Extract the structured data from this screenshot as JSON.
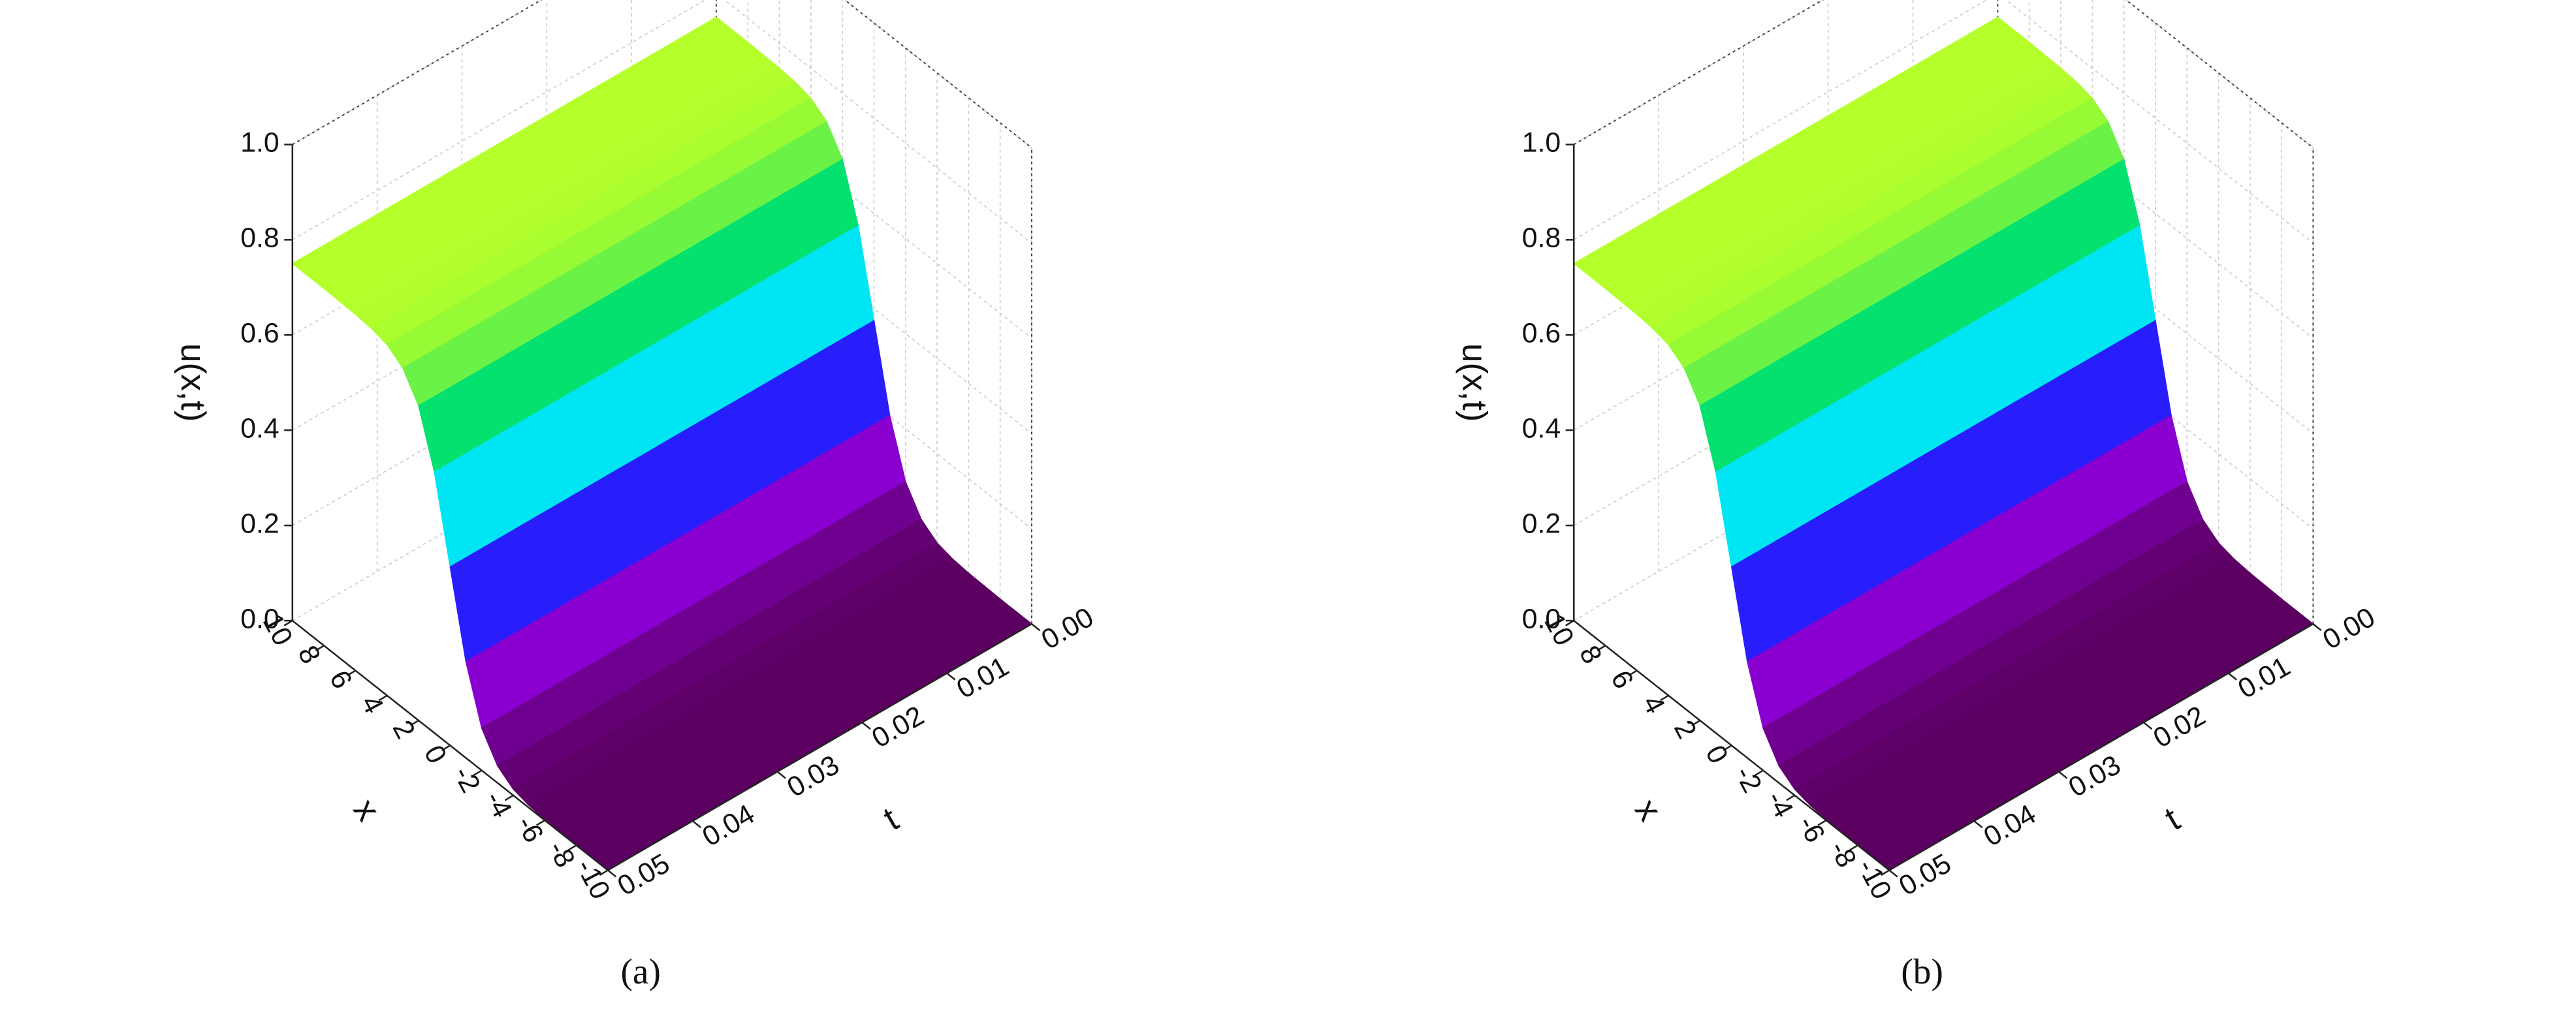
{
  "chart_data": [
    {
      "type": "surface",
      "caption": "(a)",
      "xlabel": "x",
      "ylabel": "t",
      "zlabel": "u(x,t)",
      "x": [
        -10,
        -9,
        -8,
        -7,
        -6,
        -5,
        -4,
        -3,
        -2,
        -1,
        0,
        1,
        2,
        3,
        4,
        5,
        6,
        7,
        8,
        9,
        10
      ],
      "y": [
        0,
        0.01,
        0.02,
        0.03,
        0.04,
        0.05
      ],
      "values": [
        [
          0,
          0,
          0,
          0.001,
          0.002,
          0.005,
          0.013,
          0.036,
          0.089,
          0.202,
          0.375,
          0.548,
          0.661,
          0.714,
          0.737,
          0.745,
          0.748,
          0.749,
          0.75,
          0.75,
          0.75
        ],
        [
          0,
          0,
          0,
          0.001,
          0.002,
          0.005,
          0.013,
          0.036,
          0.089,
          0.202,
          0.375,
          0.548,
          0.661,
          0.714,
          0.737,
          0.745,
          0.748,
          0.749,
          0.75,
          0.75,
          0.75
        ],
        [
          0,
          0,
          0,
          0.001,
          0.002,
          0.005,
          0.013,
          0.036,
          0.089,
          0.202,
          0.375,
          0.548,
          0.661,
          0.714,
          0.737,
          0.745,
          0.748,
          0.749,
          0.75,
          0.75,
          0.75
        ],
        [
          0,
          0,
          0,
          0.001,
          0.002,
          0.005,
          0.013,
          0.036,
          0.089,
          0.202,
          0.375,
          0.548,
          0.661,
          0.714,
          0.737,
          0.745,
          0.748,
          0.749,
          0.75,
          0.75,
          0.75
        ],
        [
          0,
          0,
          0,
          0.001,
          0.002,
          0.005,
          0.013,
          0.036,
          0.089,
          0.202,
          0.375,
          0.548,
          0.661,
          0.714,
          0.737,
          0.745,
          0.748,
          0.749,
          0.75,
          0.75,
          0.75
        ],
        [
          0,
          0,
          0,
          0.001,
          0.002,
          0.005,
          0.013,
          0.036,
          0.089,
          0.202,
          0.375,
          0.548,
          0.661,
          0.714,
          0.737,
          0.745,
          0.748,
          0.749,
          0.75,
          0.75,
          0.75
        ]
      ],
      "xlim": [
        -10,
        10
      ],
      "xticks": [
        10,
        8,
        6,
        4,
        2,
        0,
        -2,
        -4,
        -6,
        -8,
        -10
      ],
      "ylim": [
        0,
        0.05
      ],
      "yticks": [
        {
          "value": 0,
          "label": "0.00"
        },
        0.01,
        0.02,
        0.03,
        0.04,
        0.05
      ],
      "zlim": [
        0,
        1
      ],
      "zticks": [
        {
          "value": 0,
          "label": "0.0"
        },
        0.2,
        0.4,
        0.6,
        0.8,
        {
          "value": 1,
          "label": "1.0"
        }
      ],
      "colormap": [
        "#5b0060",
        "#8a00d4",
        "#2020ff",
        "#00e5ff",
        "#00e070",
        "#b5ff2a"
      ],
      "grid": true
    },
    {
      "type": "surface",
      "caption": "(b)",
      "xlabel": "x",
      "ylabel": "t",
      "zlabel": "u(x,t)",
      "x": [
        -10,
        -9,
        -8,
        -7,
        -6,
        -5,
        -4,
        -3,
        -2,
        -1,
        0,
        1,
        2,
        3,
        4,
        5,
        6,
        7,
        8,
        9,
        10
      ],
      "y": [
        0,
        0.01,
        0.02,
        0.03,
        0.04,
        0.05
      ],
      "values": [
        [
          0,
          0,
          0,
          0.001,
          0.002,
          0.005,
          0.013,
          0.036,
          0.089,
          0.202,
          0.375,
          0.548,
          0.661,
          0.714,
          0.737,
          0.745,
          0.748,
          0.749,
          0.75,
          0.75,
          0.75
        ],
        [
          0,
          0,
          0,
          0.001,
          0.002,
          0.005,
          0.013,
          0.036,
          0.089,
          0.202,
          0.375,
          0.548,
          0.661,
          0.714,
          0.737,
          0.745,
          0.748,
          0.749,
          0.75,
          0.75,
          0.75
        ],
        [
          0,
          0,
          0,
          0.001,
          0.002,
          0.005,
          0.013,
          0.036,
          0.089,
          0.202,
          0.375,
          0.548,
          0.661,
          0.714,
          0.737,
          0.745,
          0.748,
          0.749,
          0.75,
          0.75,
          0.75
        ],
        [
          0,
          0,
          0,
          0.001,
          0.002,
          0.005,
          0.013,
          0.036,
          0.089,
          0.202,
          0.375,
          0.548,
          0.661,
          0.714,
          0.737,
          0.745,
          0.748,
          0.749,
          0.75,
          0.75,
          0.75
        ],
        [
          0,
          0,
          0,
          0.001,
          0.002,
          0.005,
          0.013,
          0.036,
          0.089,
          0.202,
          0.375,
          0.548,
          0.661,
          0.714,
          0.737,
          0.745,
          0.748,
          0.749,
          0.75,
          0.75,
          0.75
        ],
        [
          0,
          0,
          0,
          0.001,
          0.002,
          0.005,
          0.013,
          0.036,
          0.089,
          0.202,
          0.375,
          0.548,
          0.661,
          0.714,
          0.737,
          0.745,
          0.748,
          0.749,
          0.75,
          0.75,
          0.75
        ]
      ],
      "xlim": [
        -10,
        10
      ],
      "xticks": [
        10,
        8,
        6,
        4,
        2,
        0,
        -2,
        -4,
        -6,
        -8,
        -10
      ],
      "ylim": [
        0,
        0.05
      ],
      "yticks": [
        {
          "value": 0,
          "label": "0.00"
        },
        0.01,
        0.02,
        0.03,
        0.04,
        0.05
      ],
      "zlim": [
        0,
        1
      ],
      "zticks": [
        {
          "value": 0,
          "label": "0.0"
        },
        0.2,
        0.4,
        0.6,
        0.8,
        {
          "value": 1,
          "label": "1.0"
        }
      ],
      "colormap": [
        "#5b0060",
        "#8a00d4",
        "#2020ff",
        "#00e5ff",
        "#00e070",
        "#b5ff2a"
      ],
      "grid": true
    }
  ]
}
